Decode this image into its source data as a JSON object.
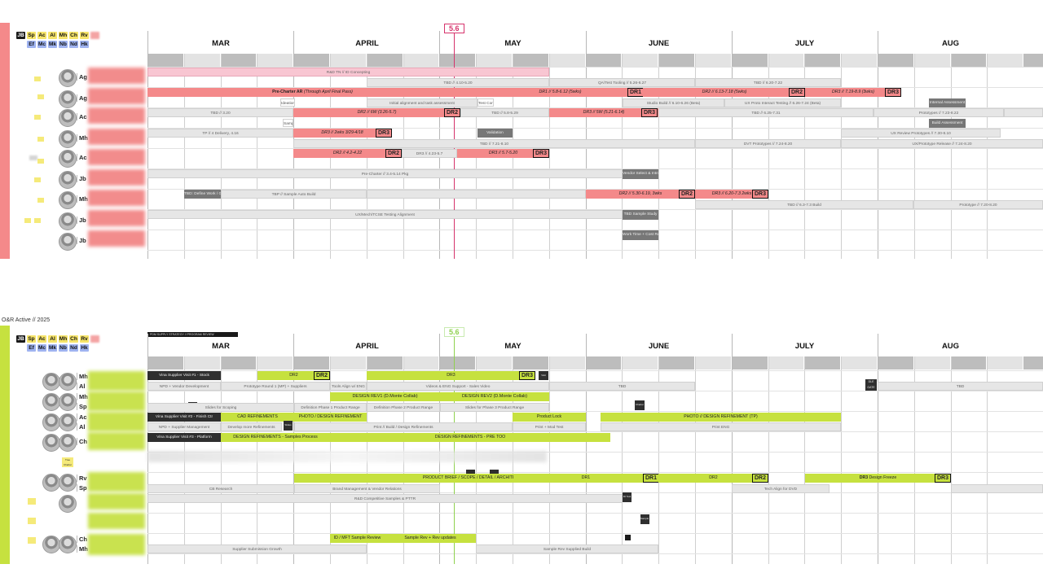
{
  "colors": {
    "top_accent": "#f4898a",
    "bottom_accent": "#c6e13f",
    "top_today": "#d6336c",
    "bottom_today": "#8fd14f"
  },
  "legend": {
    "row1": [
      "JB",
      "Sp",
      "Ac",
      "Al",
      "Mh",
      "Ch",
      "Rv",
      "Jp"
    ],
    "row2": [
      "Ef",
      "Mc",
      "Mk",
      "Nb",
      "Nd",
      "Hk"
    ]
  },
  "months": [
    "MAR",
    "APRIL",
    "MAY",
    "JUNE",
    "JULY",
    "AUG"
  ],
  "top": {
    "today": "5.6",
    "rows": [
      {
        "initials": "Ag"
      },
      {
        "initials": "Ag"
      },
      {
        "initials": "Ac"
      },
      {
        "initials": "Mh"
      },
      {
        "initials": "Ac"
      },
      {
        "initials": "Jb"
      },
      {
        "initials": "Mh"
      },
      {
        "initials": "Jb"
      },
      {
        "initials": "Jb"
      }
    ],
    "bars": {
      "b1": "R&D TN // ID Concepting",
      "b2": "TBD // 4.10-5.20",
      "b3": "QA/Test Tooling // 5.26-6.27",
      "b4": "TBD // 6.20-7.22",
      "b5_pre": "Pre-Charter AR",
      "b5_sub": "(Through April Final Pass)",
      "b6": "DR1 // 5.8-6.12 (5wks)",
      "b7": "DR2 // 6.13-7.18 (5wks)",
      "b8": "DR3 // 7.19-8.9 (3wks)",
      "b9": "Initial alignment and task assessment",
      "b10": "Studio Build // 6.10-6.26 (Beta)",
      "b11": "UX Proto Interact Testing // 6.26-7.24 (Beta)",
      "b12": "TBD // 3.20",
      "b13": "DR2 // 6W (3.26-5.7)",
      "b14": "TBD // 5.8-5.29",
      "b15": "DR3 // 5W (5.21-6.14)",
      "b16": "TBD // 6.25-7.31",
      "b17": "Prototypes // 7.23-8.22",
      "b18": "TP // 4 Delivery, 4.16",
      "b19": "DR3 // 2wks 3/29-4/18",
      "b20": "Validation",
      "b21": "TBD // 7.21-8.10",
      "b22": "DVT Prototypes // 7.24-8.20",
      "b23": "UX Review Prototypes // 7.30-8.10",
      "b24": "DR2 // 4.2-4.22",
      "b25": "DR3 // 4.23-5.7",
      "b26": "DR3 // 5.7-5.20",
      "b27": "UX/Prototype Release // 7.24-8.20",
      "b28": "Pre-Charter // 3.4-5.14 Pkg",
      "b29": "Vendor Select & Intro Checkin",
      "b30": "TBD: Define Work / Gantt",
      "b31": "TBP // Sample Auto Build",
      "b32": "DR2 // 5.30-6.19, 3wks",
      "b33": "DR3 // 6.20-7.3 2wks",
      "b34": "TBD // 6.3-7.3 Build",
      "b35": "Prototype // 7.20-8.20",
      "b36": "UX/Mech/TCSE Testing Alignment",
      "b37": "TBD Sample Study",
      "b38": "Work Time + Cost Readout",
      "b39": "Ideation",
      "b40": "Build Assessment",
      "b41": "Sampling",
      "b42": "Test Config",
      "b43": "Internal Assessment",
      "badge_dr1": "DR1",
      "badge_dr2": "DR2",
      "badge_dr3": "DR3"
    }
  },
  "bottom": {
    "section_title": "O&R Active // 2025",
    "today": "5.6",
    "header_caption": "PDM SUPPLY STRATEGY // PROGRAM REVIEW",
    "rows": [
      {
        "initials": "Mh"
      },
      {
        "initials": "Al"
      },
      {
        "initials": "Mh"
      },
      {
        "initials": "Sp"
      },
      {
        "initials": "Ac"
      },
      {
        "initials": "Al"
      },
      {
        "initials": "Ch"
      },
      {
        "initials": "Rv"
      },
      {
        "initials": "Sp"
      },
      {
        "initials": "Ch"
      },
      {
        "initials": "Mh"
      }
    ],
    "bars": {
      "c1": "Vina Supplier Visit #1 - Stock",
      "c2": "DR2",
      "c3": "DR3",
      "c4": "Visit",
      "c5": "NPD + Vendor Development",
      "c6": "Prototype Round 1 (MP) + Suppliers",
      "c7": "Tools Align w/ ENG",
      "c8": "Videos & ENG Support - Sales Video",
      "c9": "TBD",
      "c10": "DLE GATE",
      "c11": "TBD",
      "c12": "DESIGN REV1 (D.Monte Collab)",
      "c13": "DESIGN REV2 (D.Monte Collab)",
      "c14": "Slide Build",
      "c15": "Slides for Scoping",
      "c16": "Definition Phase 1 Product Range",
      "c17": "Definition Phase 2 Product Range",
      "c18": "Slides for Phase 3 Product Range",
      "c19": "Charter",
      "c20": "Vina Supplier Visit #2 - Finish Ctr",
      "c21": "CAD REFINEMENTS",
      "c22": "PHOTO / DESIGN REFINEMENT",
      "c23": "Product Lock",
      "c24": "PHOTO // DESIGN REFINEMENT (TP)",
      "c25": "NPD + Supplier Management",
      "c26": "Develop more Refinements",
      "c27": "Slides",
      "c28": "Print // Build / Design Refinements",
      "c29": "Print + Mod Test",
      "c30": "Print ENG",
      "c31": "Vina Supplier Visit #3 - Platform",
      "c32": "DESIGN REFINEMENTS - Samples Process",
      "c33": "DESIGN REFINEMENTS - PRE TOO",
      "c34": "Tree Charter",
      "c35": "PRODUCT BRIEF / SCOPE / DETAIL / ARCHITECTURE",
      "c36": "DR1",
      "c37": "DR2",
      "c38": "DR3",
      "c39": "Design Freeze",
      "c40": "CB Research",
      "c41": "Brand Management & Vendor Relations",
      "c42": "Tech Align for DVD",
      "c43": "R&D Competitive Samples & PTTR",
      "c44": "Fit Test",
      "c45": "Sample Box",
      "c46": "ID / MFT Sample Review",
      "c47": "Sample Rev + Rev updates",
      "c48": "Supplier Submission Growth",
      "c49": "Sample Rev Supplied Build",
      "badge_dr1": "DR1",
      "badge_dr2": "DR2",
      "badge_dr3": "DR3"
    }
  }
}
